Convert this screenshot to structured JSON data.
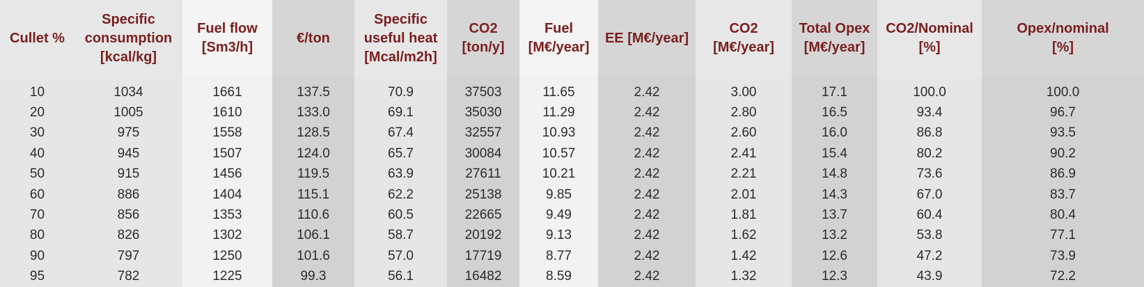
{
  "table": {
    "headers": [
      "Cullet %",
      "Specific\nconsumption\n[kcal/kg]",
      "Fuel flow\n[Sm3/h]",
      "€/ton",
      "Specific\nuseful heat\n[Mcal/m2h]",
      "CO2\n[ton/y]",
      "Fuel\n[M€/year]",
      "EE [M€/year]",
      "CO2\n[M€/year]",
      "Total Opex\n[M€/year]",
      "CO2/Nominal\n[%]",
      "Opex/nominal\n[%]"
    ],
    "rows": [
      [
        "10",
        "1034",
        "1661",
        "137.5",
        "70.9",
        "37503",
        "11.65",
        "2.42",
        "3.00",
        "17.1",
        "100.0",
        "100.0"
      ],
      [
        "20",
        "1005",
        "1610",
        "133.0",
        "69.1",
        "35030",
        "11.29",
        "2.42",
        "2.80",
        "16.5",
        "93.4",
        "96.7"
      ],
      [
        "30",
        "975",
        "1558",
        "128.5",
        "67.4",
        "32557",
        "10.93",
        "2.42",
        "2.60",
        "16.0",
        "86.8",
        "93.5"
      ],
      [
        "40",
        "945",
        "1507",
        "124.0",
        "65.7",
        "30084",
        "10.57",
        "2.42",
        "2.41",
        "15.4",
        "80.2",
        "90.2"
      ],
      [
        "50",
        "915",
        "1456",
        "119.5",
        "63.9",
        "27611",
        "10.21",
        "2.42",
        "2.21",
        "14.8",
        "73.6",
        "86.9"
      ],
      [
        "60",
        "886",
        "1404",
        "115.1",
        "62.2",
        "25138",
        "9.85",
        "2.42",
        "2.01",
        "14.3",
        "67.0",
        "83.7"
      ],
      [
        "70",
        "856",
        "1353",
        "110.6",
        "60.5",
        "22665",
        "9.49",
        "2.42",
        "1.81",
        "13.7",
        "60.4",
        "80.4"
      ],
      [
        "80",
        "826",
        "1302",
        "106.1",
        "58.7",
        "20192",
        "9.13",
        "2.42",
        "1.62",
        "13.2",
        "53.8",
        "77.1"
      ],
      [
        "90",
        "797",
        "1250",
        "101.6",
        "57.0",
        "17719",
        "8.77",
        "2.42",
        "1.42",
        "12.6",
        "47.2",
        "73.9"
      ],
      [
        "95",
        "782",
        "1225",
        "99.3",
        "56.1",
        "16482",
        "8.59",
        "2.42",
        "1.32",
        "12.3",
        "43.9",
        "72.2"
      ]
    ]
  },
  "colors": {
    "header_text": "#7a1f1f",
    "cell_text": "#2b2b2b",
    "band_light": "#e6e6e6",
    "band_dark": "#d2d2d2",
    "band_white": "#f2f2f2"
  }
}
